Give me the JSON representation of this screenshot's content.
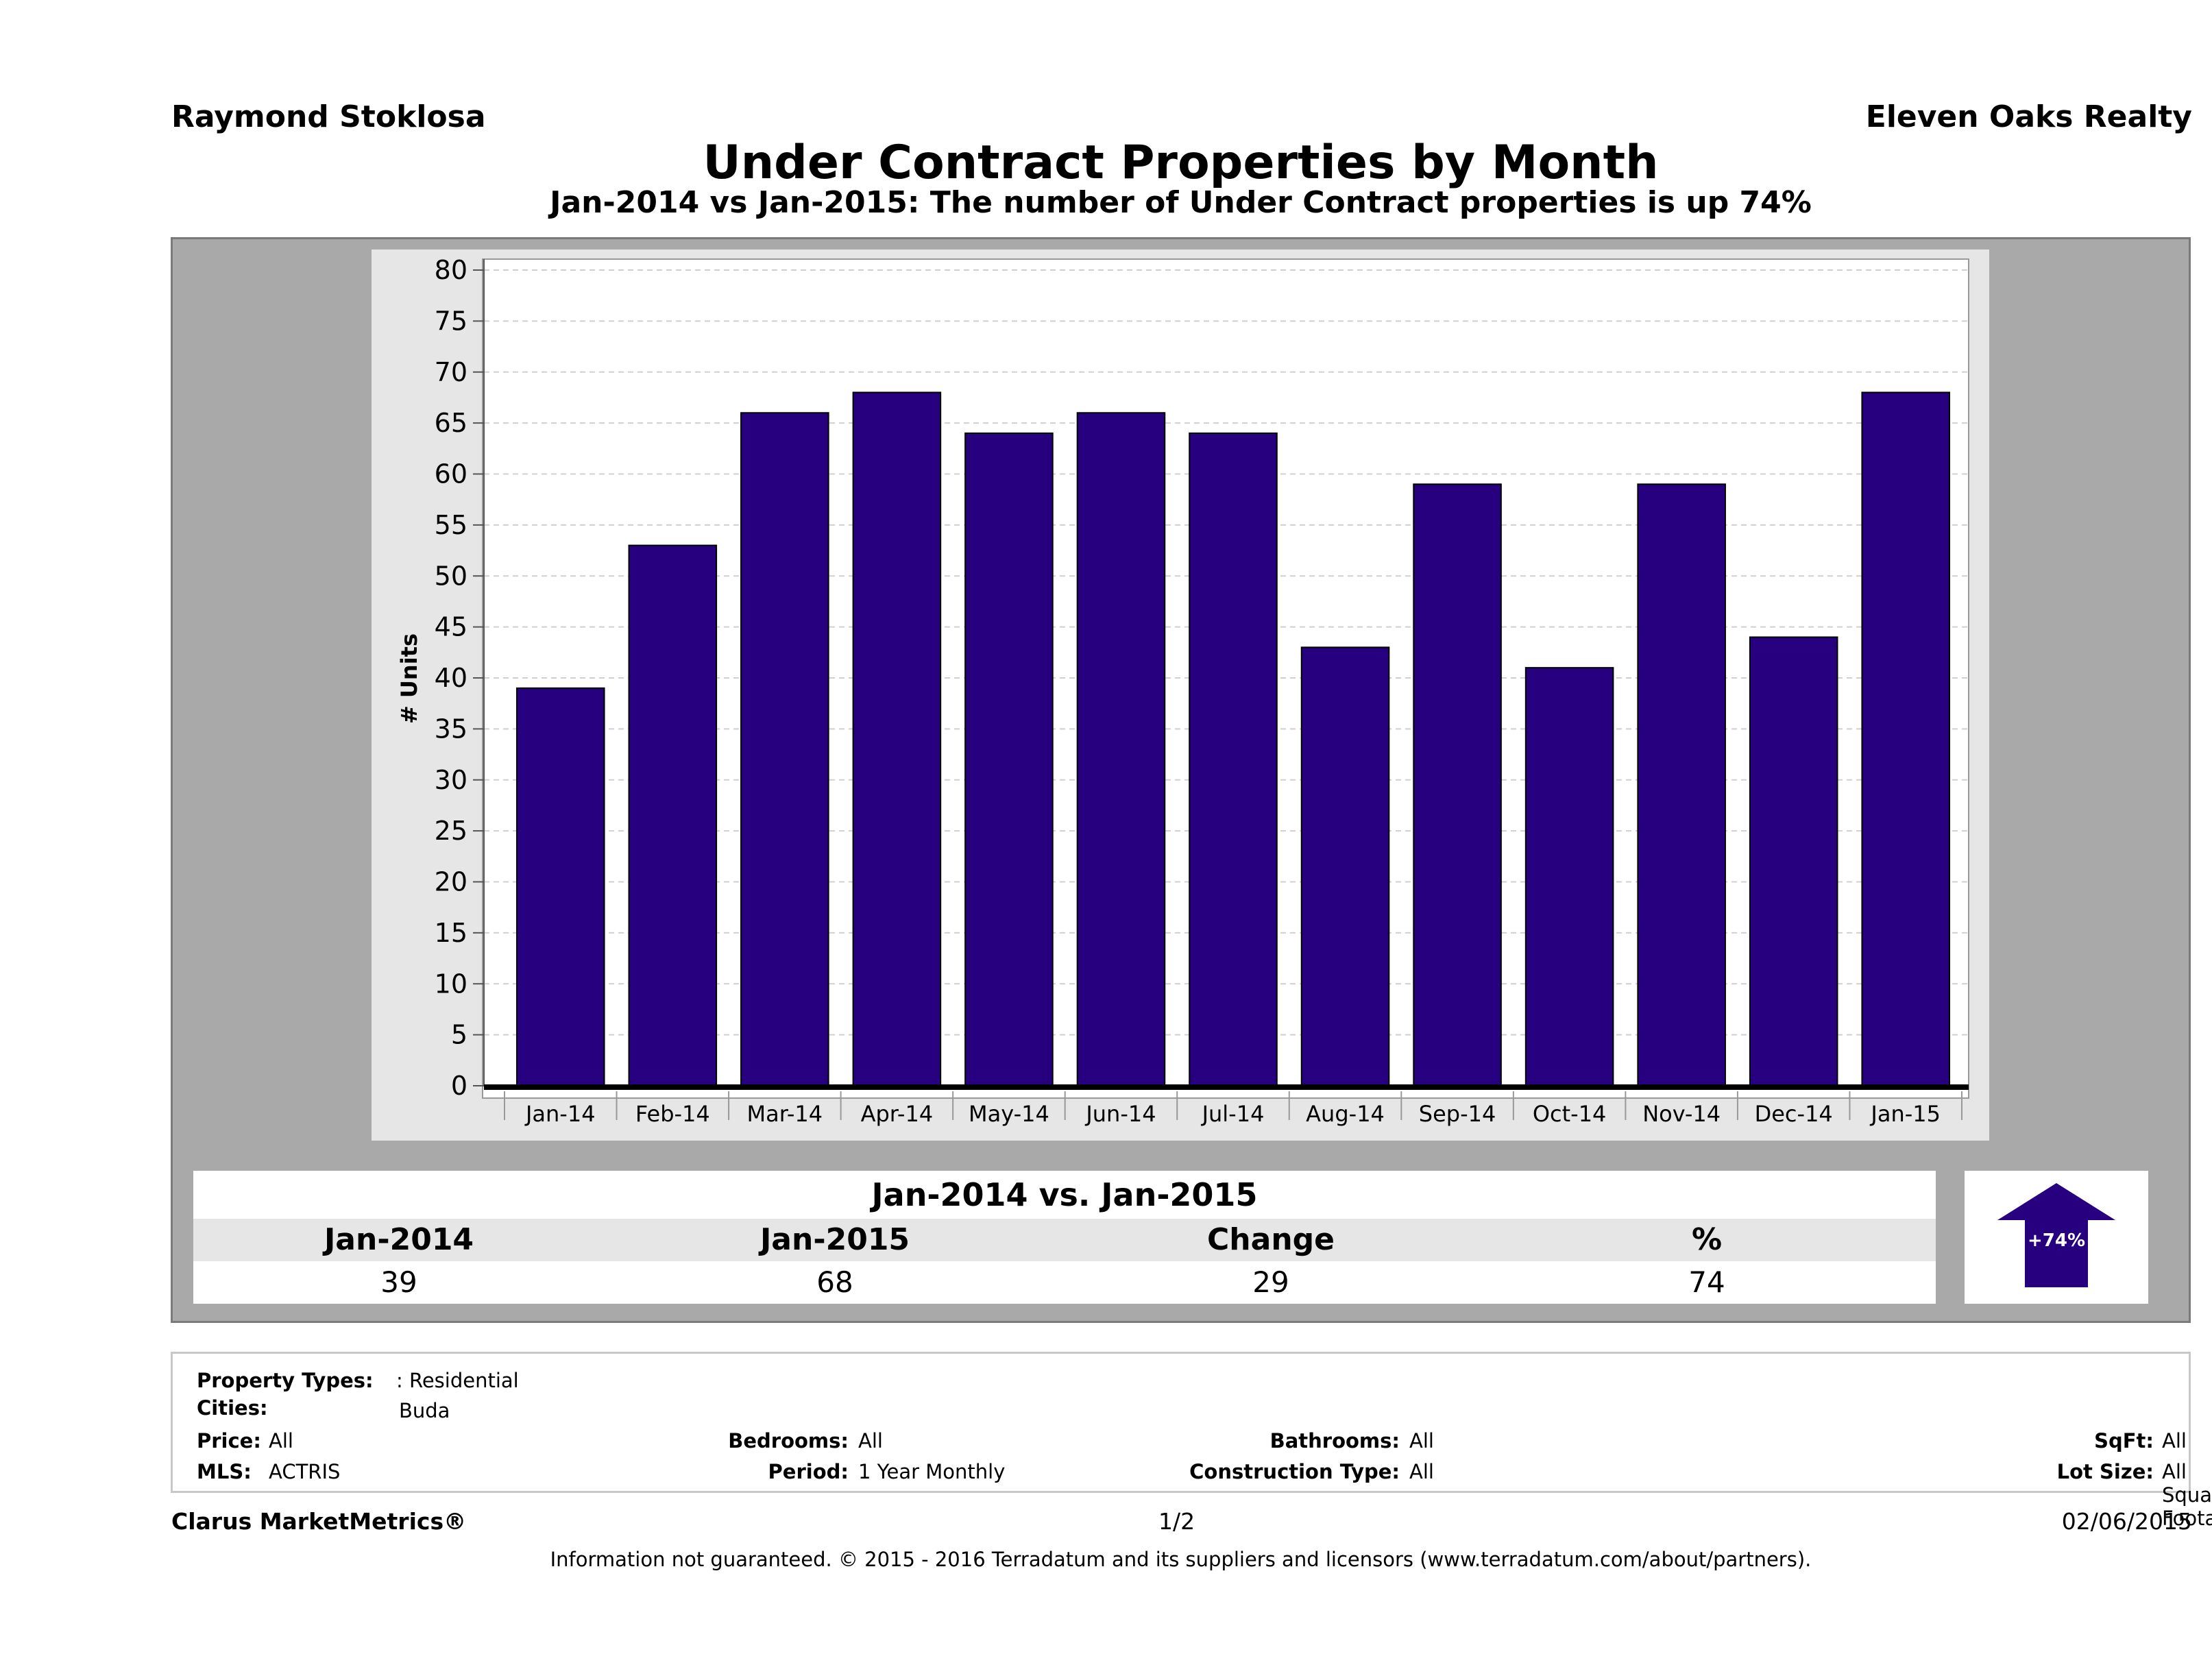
{
  "header": {
    "agent": "Raymond Stoklosa",
    "company": "Eleven Oaks Realty",
    "title": "Under Contract Properties by Month",
    "subtitle": "Jan-2014 vs Jan-2015: The number of Under Contract  properties is up 74%"
  },
  "chart_data": {
    "type": "bar",
    "title": "Under Contract Properties by Month",
    "xlabel": "",
    "ylabel": "# Units",
    "categories": [
      "Jan-14",
      "Feb-14",
      "Mar-14",
      "Apr-14",
      "May-14",
      "Jun-14",
      "Jul-14",
      "Aug-14",
      "Sep-14",
      "Oct-14",
      "Nov-14",
      "Dec-14",
      "Jan-15"
    ],
    "values": [
      39,
      53,
      66,
      68,
      64,
      66,
      64,
      43,
      59,
      41,
      59,
      44,
      68
    ],
    "ylim": [
      0,
      80
    ],
    "yticks": [
      0,
      5,
      10,
      15,
      20,
      25,
      30,
      35,
      40,
      45,
      50,
      55,
      60,
      65,
      70,
      75,
      80
    ],
    "grid": true,
    "bar_color": "#27007f"
  },
  "summary": {
    "heading": "Jan-2014 vs. Jan-2015",
    "labels": [
      "Jan-2014",
      "Jan-2015",
      "Change",
      "%"
    ],
    "values": [
      "39",
      "68",
      "29",
      "74"
    ],
    "badge": "+74%",
    "badge_color": "#27007f"
  },
  "filters": {
    "property_types_label": "Property Types:",
    "property_types_value": ": Residential",
    "cities_label": "Cities:",
    "cities_value": "Buda",
    "price_label": "Price:",
    "price_value": "All",
    "mls_label": "MLS:",
    "mls_value": "ACTRIS",
    "bedrooms_label": "Bedrooms:",
    "bedrooms_value": "All",
    "period_label": "Period:",
    "period_value": "1 Year Monthly",
    "bathrooms_label": "Bathrooms:",
    "bathrooms_value": "All",
    "construction_label": "Construction Type:",
    "construction_value": "All",
    "sqft_label": "SqFt:",
    "sqft_value": "All",
    "lot_label": "Lot Size:",
    "lot_value": "All Square Footage"
  },
  "footer": {
    "brand": "Clarus MarketMetrics®",
    "page": "1/2",
    "date": "02/06/2015",
    "disclaimer": "Information not guaranteed. © 2015 - 2016 Terradatum and its suppliers and licensors (www.terradatum.com/about/partners)."
  }
}
